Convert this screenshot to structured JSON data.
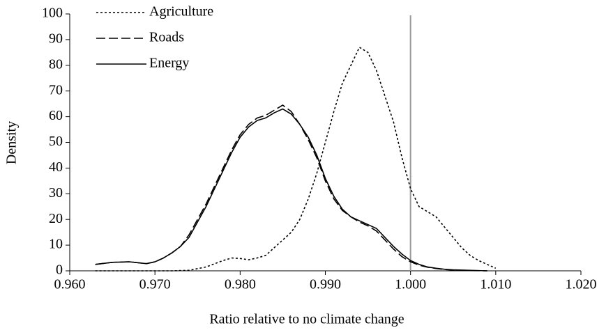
{
  "chart_data": {
    "type": "line",
    "x_label": "Ratio relative to no climate change",
    "y_label": "Density",
    "xlim": [
      0.96,
      1.02
    ],
    "xticks": [
      {
        "value": 0.96,
        "label": "0.960"
      },
      {
        "value": 0.97,
        "label": "0.970"
      },
      {
        "value": 0.98,
        "label": "0.980"
      },
      {
        "value": 0.99,
        "label": "0.990"
      },
      {
        "value": 1.0,
        "label": "1.000"
      },
      {
        "value": 1.01,
        "label": "1.010"
      },
      {
        "value": 1.02,
        "label": "1.020"
      }
    ],
    "ylim": [
      0,
      100
    ],
    "yticks": [
      0,
      10,
      20,
      30,
      40,
      50,
      60,
      70,
      80,
      90,
      100
    ],
    "vline": {
      "x": 1.0,
      "color": "#999999"
    },
    "legend": "upper left",
    "series": [
      {
        "name": "Agriculture",
        "color": "#000000",
        "dash": "dotted",
        "x": [
          0.963,
          0.966,
          0.969,
          0.972,
          0.974,
          0.976,
          0.978,
          0.979,
          0.98,
          0.981,
          0.982,
          0.983,
          0.984,
          0.985,
          0.986,
          0.987,
          0.988,
          0.989,
          0.99,
          0.991,
          0.992,
          0.993,
          0.994,
          0.995,
          0.996,
          0.997,
          0.998,
          0.999,
          1.0,
          1.001,
          1.002,
          1.003,
          1.004,
          1.005,
          1.006,
          1.007,
          1.008,
          1.009,
          1.01
        ],
        "values": [
          0,
          0,
          0,
          0,
          0.2,
          1.5,
          4,
          5,
          4.8,
          4.3,
          5,
          6,
          9,
          12,
          15,
          20,
          28,
          38,
          50,
          62,
          73,
          80,
          87,
          85,
          78,
          68,
          58,
          44,
          32,
          25,
          23,
          21,
          17,
          13,
          9,
          6,
          4,
          2.5,
          1
        ]
      },
      {
        "name": "Roads",
        "color": "#000000",
        "dash": "dashed",
        "x": [
          0.963,
          0.965,
          0.967,
          0.969,
          0.97,
          0.971,
          0.972,
          0.973,
          0.974,
          0.975,
          0.976,
          0.977,
          0.978,
          0.979,
          0.98,
          0.981,
          0.982,
          0.983,
          0.984,
          0.985,
          0.986,
          0.987,
          0.988,
          0.989,
          0.99,
          0.991,
          0.992,
          0.993,
          0.994,
          0.995,
          0.996,
          0.997,
          0.998,
          0.999,
          1.0,
          1.001,
          1.002,
          1.003,
          1.004,
          1.005,
          1.007,
          1.009
        ],
        "values": [
          2.5,
          3.3,
          3.5,
          2.8,
          3.5,
          5,
          7,
          9.5,
          14,
          20,
          26,
          33,
          40,
          47,
          53,
          57,
          59.5,
          60.5,
          62.5,
          64.5,
          62,
          57,
          51,
          44,
          35,
          28,
          23.5,
          21,
          19,
          17.5,
          15.5,
          12,
          8.5,
          5.5,
          3.5,
          2.2,
          1.4,
          0.9,
          0.5,
          0.3,
          0.1,
          0
        ]
      },
      {
        "name": "Energy",
        "color": "#000000",
        "dash": "solid",
        "x": [
          0.963,
          0.965,
          0.967,
          0.969,
          0.97,
          0.971,
          0.972,
          0.973,
          0.974,
          0.975,
          0.976,
          0.977,
          0.978,
          0.979,
          0.98,
          0.981,
          0.982,
          0.983,
          0.984,
          0.985,
          0.986,
          0.987,
          0.988,
          0.989,
          0.99,
          0.991,
          0.992,
          0.993,
          0.994,
          0.995,
          0.996,
          0.997,
          0.998,
          0.999,
          1.0,
          1.001,
          1.002,
          1.003,
          1.004,
          1.005,
          1.007,
          1.009
        ],
        "values": [
          2.5,
          3.3,
          3.5,
          2.8,
          3.5,
          5,
          7,
          9.5,
          13,
          19,
          25,
          32,
          39,
          46,
          52,
          56,
          58.5,
          59.5,
          61.5,
          63,
          61,
          57,
          52,
          45,
          36,
          29,
          24,
          21,
          19.5,
          18,
          16.5,
          13,
          9.5,
          6.5,
          4,
          2.5,
          1.5,
          1,
          0.6,
          0.4,
          0.2,
          0
        ]
      }
    ]
  }
}
